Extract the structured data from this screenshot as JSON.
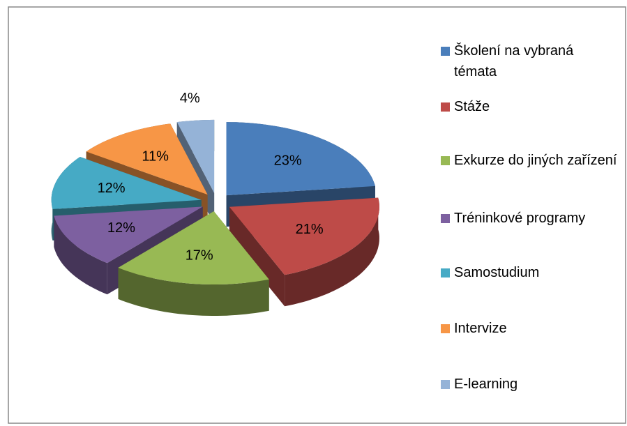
{
  "chart_data": {
    "type": "pie",
    "categories": [
      "Školení na vybraná témata",
      "Stáže",
      "Exkurze do jiných zařízení",
      "Tréninkové programy",
      "Samostudium",
      "Intervize",
      "E-learning"
    ],
    "values": [
      23,
      21,
      17,
      12,
      12,
      11,
      4
    ],
    "value_labels": [
      "23%",
      "21%",
      "17%",
      "12%",
      "12%",
      "11%",
      "4%"
    ],
    "colors": [
      "#4a7ebb",
      "#be4b48",
      "#98b954",
      "#7d60a0",
      "#46aac5",
      "#f79646",
      "#95b3d7"
    ],
    "legend": "right"
  }
}
